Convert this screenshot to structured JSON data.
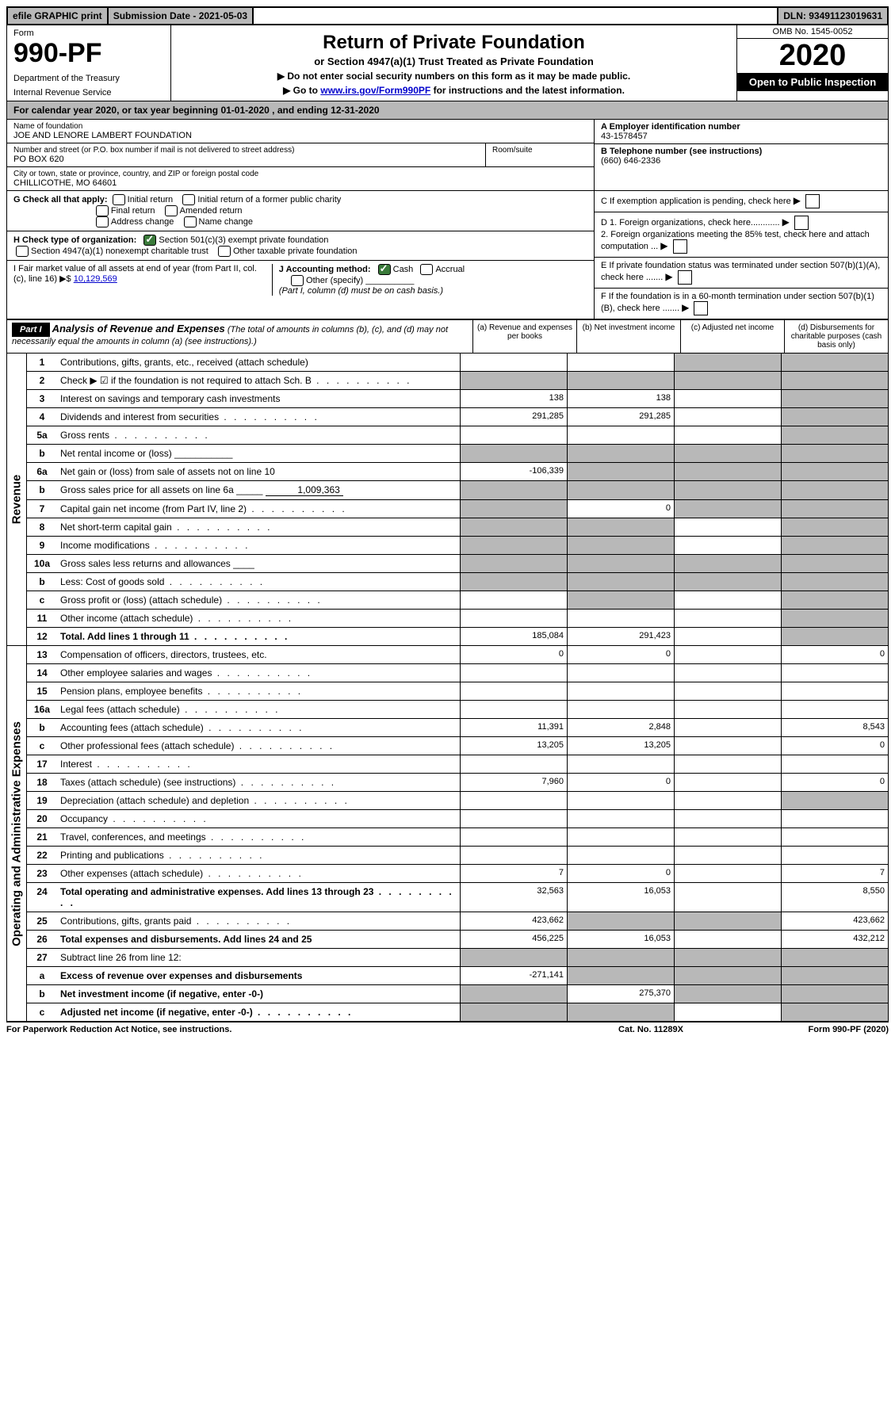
{
  "top": {
    "efile": "efile GRAPHIC print",
    "subdate_label": "Submission Date - 2021-05-03",
    "dln": "DLN: 93491123019631"
  },
  "header": {
    "form_label": "Form",
    "form_num": "990-PF",
    "dept": "Department of the Treasury",
    "irs": "Internal Revenue Service",
    "title": "Return of Private Foundation",
    "subtitle": "or Section 4947(a)(1) Trust Treated as Private Foundation",
    "notice1": "▶ Do not enter social security numbers on this form as it may be made public.",
    "notice2_pre": "▶ Go to ",
    "notice2_link": "www.irs.gov/Form990PF",
    "notice2_post": " for instructions and the latest information.",
    "omb": "OMB No. 1545-0052",
    "year": "2020",
    "open": "Open to Public Inspection"
  },
  "calyear": "For calendar year 2020, or tax year beginning 01-01-2020                          , and ending 12-31-2020",
  "info": {
    "name_label": "Name of foundation",
    "name": "JOE AND LENORE LAMBERT FOUNDATION",
    "addr_label": "Number and street (or P.O. box number if mail is not delivered to street address)",
    "addr": "PO BOX 620",
    "room_label": "Room/suite",
    "city_label": "City or town, state or province, country, and ZIP or foreign postal code",
    "city": "CHILLICOTHE, MO  64601",
    "ein_label": "A Employer identification number",
    "ein": "43-1578457",
    "tel_label": "B Telephone number (see instructions)",
    "tel": "(660) 646-2336",
    "c_label": "C If exemption application is pending, check here",
    "d1": "D 1. Foreign organizations, check here............",
    "d2": "2. Foreign organizations meeting the 85% test, check here and attach computation ...",
    "e_label": "E  If private foundation status was terminated under section 507(b)(1)(A), check here .......",
    "f_label": "F  If the foundation is in a 60-month termination under section 507(b)(1)(B), check here .......",
    "g_label": "G Check all that apply:",
    "g_opts": [
      "Initial return",
      "Initial return of a former public charity",
      "Final return",
      "Amended return",
      "Address change",
      "Name change"
    ],
    "h_label": "H Check type of organization:",
    "h1": "Section 501(c)(3) exempt private foundation",
    "h2": "Section 4947(a)(1) nonexempt charitable trust",
    "h3": "Other taxable private foundation",
    "i_label": "I Fair market value of all assets at end of year (from Part II, col. (c), line 16) ▶$ ",
    "i_val": "10,129,569",
    "j_label": "J Accounting method:",
    "j_cash": "Cash",
    "j_accrual": "Accrual",
    "j_other": "Other (specify)",
    "j_note": "(Part I, column (d) must be on cash basis.)"
  },
  "part1": {
    "label": "Part I",
    "title": "Analysis of Revenue and Expenses",
    "title_note": "(The total of amounts in columns (b), (c), and (d) may not necessarily equal the amounts in column (a) (see instructions).)",
    "col_a": "(a)   Revenue and expenses per books",
    "col_b": "(b)  Net investment income",
    "col_c": "(c)  Adjusted net income",
    "col_d": "(d)  Disbursements for charitable purposes (cash basis only)"
  },
  "revenue_label": "Revenue",
  "expenses_label": "Operating and Administrative Expenses",
  "rows": [
    {
      "n": "1",
      "l": "Contributions, gifts, grants, etc., received (attach schedule)",
      "a": "",
      "b": "",
      "c": "g",
      "d": "g"
    },
    {
      "n": "2",
      "l": "Check ▶ ☑ if the foundation is not required to attach Sch. B",
      "a": "g",
      "b": "g",
      "c": "g",
      "d": "g",
      "dots": true
    },
    {
      "n": "3",
      "l": "Interest on savings and temporary cash investments",
      "a": "138",
      "b": "138",
      "c": "",
      "d": "g"
    },
    {
      "n": "4",
      "l": "Dividends and interest from securities",
      "a": "291,285",
      "b": "291,285",
      "c": "",
      "d": "g",
      "dots": true
    },
    {
      "n": "5a",
      "l": "Gross rents",
      "a": "",
      "b": "",
      "c": "",
      "d": "g",
      "dots": true
    },
    {
      "n": "b",
      "l": "Net rental income or (loss)  ___________",
      "a": "g",
      "b": "g",
      "c": "g",
      "d": "g"
    },
    {
      "n": "6a",
      "l": "Net gain or (loss) from sale of assets not on line 10",
      "a": "-106,339",
      "b": "g",
      "c": "g",
      "d": "g"
    },
    {
      "n": "b",
      "l": "Gross sales price for all assets on line 6a _____",
      "val": "1,009,363",
      "a": "g",
      "b": "g",
      "c": "g",
      "d": "g"
    },
    {
      "n": "7",
      "l": "Capital gain net income (from Part IV, line 2)",
      "a": "g",
      "b": "0",
      "c": "g",
      "d": "g",
      "dots": true
    },
    {
      "n": "8",
      "l": "Net short-term capital gain",
      "a": "g",
      "b": "g",
      "c": "",
      "d": "g",
      "dots": true
    },
    {
      "n": "9",
      "l": "Income modifications",
      "a": "g",
      "b": "g",
      "c": "",
      "d": "g",
      "dots": true
    },
    {
      "n": "10a",
      "l": "Gross sales less returns and allowances  ____",
      "a": "g",
      "b": "g",
      "c": "g",
      "d": "g"
    },
    {
      "n": "b",
      "l": "Less: Cost of goods sold",
      "a": "g",
      "b": "g",
      "c": "g",
      "d": "g",
      "dots": true
    },
    {
      "n": "c",
      "l": "Gross profit or (loss) (attach schedule)",
      "a": "",
      "b": "g",
      "c": "",
      "d": "g",
      "dots": true
    },
    {
      "n": "11",
      "l": "Other income (attach schedule)",
      "a": "",
      "b": "",
      "c": "",
      "d": "g",
      "dots": true
    },
    {
      "n": "12",
      "l": "Total. Add lines 1 through 11",
      "a": "185,084",
      "b": "291,423",
      "c": "",
      "d": "g",
      "bold": true,
      "dots": true
    }
  ],
  "exp_rows": [
    {
      "n": "13",
      "l": "Compensation of officers, directors, trustees, etc.",
      "a": "0",
      "b": "0",
      "c": "",
      "d": "0"
    },
    {
      "n": "14",
      "l": "Other employee salaries and wages",
      "a": "",
      "b": "",
      "c": "",
      "d": "",
      "dots": true
    },
    {
      "n": "15",
      "l": "Pension plans, employee benefits",
      "a": "",
      "b": "",
      "c": "",
      "d": "",
      "dots": true
    },
    {
      "n": "16a",
      "l": "Legal fees (attach schedule)",
      "a": "",
      "b": "",
      "c": "",
      "d": "",
      "dots": true
    },
    {
      "n": "b",
      "l": "Accounting fees (attach schedule)",
      "a": "11,391",
      "b": "2,848",
      "c": "",
      "d": "8,543",
      "dots": true
    },
    {
      "n": "c",
      "l": "Other professional fees (attach schedule)",
      "a": "13,205",
      "b": "13,205",
      "c": "",
      "d": "0",
      "dots": true
    },
    {
      "n": "17",
      "l": "Interest",
      "a": "",
      "b": "",
      "c": "",
      "d": "",
      "dots": true
    },
    {
      "n": "18",
      "l": "Taxes (attach schedule) (see instructions)",
      "a": "7,960",
      "b": "0",
      "c": "",
      "d": "0",
      "dots": true
    },
    {
      "n": "19",
      "l": "Depreciation (attach schedule) and depletion",
      "a": "",
      "b": "",
      "c": "",
      "d": "g",
      "dots": true
    },
    {
      "n": "20",
      "l": "Occupancy",
      "a": "",
      "b": "",
      "c": "",
      "d": "",
      "dots": true
    },
    {
      "n": "21",
      "l": "Travel, conferences, and meetings",
      "a": "",
      "b": "",
      "c": "",
      "d": "",
      "dots": true
    },
    {
      "n": "22",
      "l": "Printing and publications",
      "a": "",
      "b": "",
      "c": "",
      "d": "",
      "dots": true
    },
    {
      "n": "23",
      "l": "Other expenses (attach schedule)",
      "a": "7",
      "b": "0",
      "c": "",
      "d": "7",
      "dots": true
    },
    {
      "n": "24",
      "l": "Total operating and administrative expenses. Add lines 13 through 23",
      "a": "32,563",
      "b": "16,053",
      "c": "",
      "d": "8,550",
      "bold": true,
      "dots": true
    },
    {
      "n": "25",
      "l": "Contributions, gifts, grants paid",
      "a": "423,662",
      "b": "g",
      "c": "g",
      "d": "423,662",
      "dots": true
    },
    {
      "n": "26",
      "l": "Total expenses and disbursements. Add lines 24 and 25",
      "a": "456,225",
      "b": "16,053",
      "c": "",
      "d": "432,212",
      "bold": true
    },
    {
      "n": "27",
      "l": "Subtract line 26 from line 12:",
      "a": "g",
      "b": "g",
      "c": "g",
      "d": "g"
    },
    {
      "n": "a",
      "l": "Excess of revenue over expenses and disbursements",
      "a": "-271,141",
      "b": "g",
      "c": "g",
      "d": "g",
      "bold": true
    },
    {
      "n": "b",
      "l": "Net investment income (if negative, enter -0-)",
      "a": "g",
      "b": "275,370",
      "c": "g",
      "d": "g",
      "bold": true
    },
    {
      "n": "c",
      "l": "Adjusted net income (if negative, enter -0-)",
      "a": "g",
      "b": "g",
      "c": "",
      "d": "g",
      "bold": true,
      "dots": true
    }
  ],
  "footer": {
    "l": "For Paperwork Reduction Act Notice, see instructions.",
    "c": "Cat. No. 11289X",
    "r": "Form 990-PF (2020)"
  }
}
